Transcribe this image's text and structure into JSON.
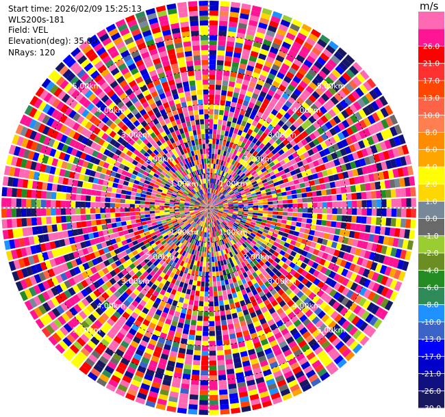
{
  "info": {
    "start_time": "Start time: 2026/02/09 15:25:13",
    "station": "WLS200s-181",
    "field": "Field: VEL",
    "elevation": "Elevation(deg): 35.00",
    "nrays": "NRays: 120"
  },
  "colorbar": {
    "unit": "m/s",
    "colors": [
      "#181860",
      "#101080",
      "#0000c8",
      "#0000ff",
      "#3c64c8",
      "#1e90ff",
      "#2e8b57",
      "#228b22",
      "#6b8e23",
      "#9acd32",
      "#696969",
      "#778899",
      "#ffd700",
      "#ffff00",
      "#ffa500",
      "#ff8c00",
      "#ff7f50",
      "#ff6347",
      "#ff4500",
      "#ff3030",
      "#ff0000",
      "#ff1493",
      "#ff69b4"
    ],
    "tick_labels": [
      "-30.0",
      "-26.0",
      "-21.0",
      "-17.0",
      "-13.0",
      "-10.0",
      "-8.0",
      "-6.0",
      "-4.0",
      "-2.0",
      "-1.0",
      "0.0",
      "1.0",
      "2.0",
      "4.0",
      "6.0",
      "8.0",
      "10.0",
      "13.0",
      "17.0",
      "21.0",
      "26.0"
    ]
  },
  "chart_data": {
    "type": "ppi",
    "field": "VEL",
    "units": "m/s",
    "nrays": 120,
    "max_range_km": 6.0,
    "range_ring_labels": [
      "1.00km",
      "2.00km",
      "3.00km",
      "4.00km",
      "5.00km"
    ],
    "range_rings_km": [
      1,
      2,
      3,
      4,
      5
    ]
  }
}
